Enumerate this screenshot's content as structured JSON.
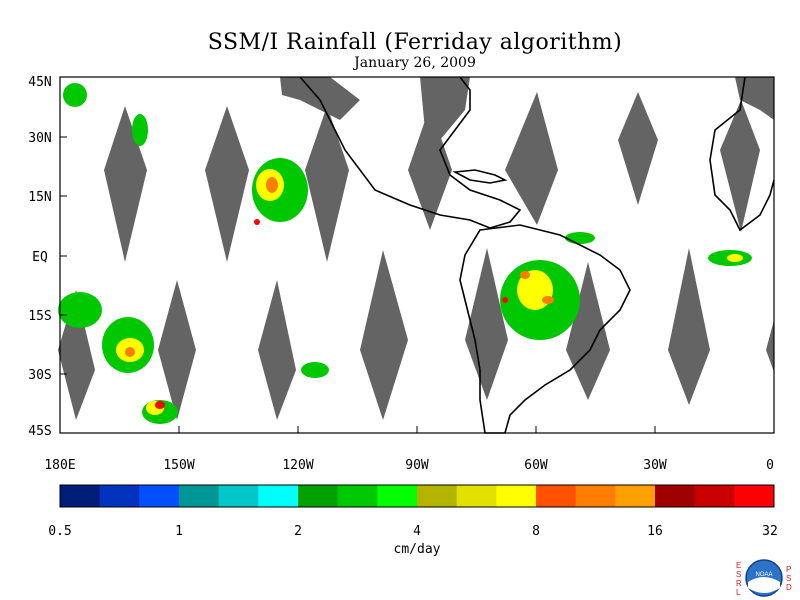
{
  "title": "SSM/I Rainfall (Ferriday algorithm)",
  "date": "January 26, 2009",
  "map": {
    "lat_labels": [
      "45N",
      "30N",
      "15N",
      "EQ",
      "15S",
      "30S",
      "45S"
    ],
    "lon_labels": [
      "180E",
      "150W",
      "120W",
      "90W",
      "60W",
      "30W",
      "0"
    ]
  },
  "colorbar": {
    "tick_labels": [
      "0.5",
      "1",
      "2",
      "4",
      "8",
      "16",
      "32"
    ],
    "unit": "cm/day",
    "colors": [
      "#001e78",
      "#0032be",
      "#0050ff",
      "#009696",
      "#00c8c8",
      "#00ffff",
      "#00a000",
      "#00c800",
      "#00ff00",
      "#b4b400",
      "#e1e100",
      "#ffff00",
      "#ff5000",
      "#ff7d00",
      "#ffa000",
      "#a00000",
      "#c80000",
      "#ff0000"
    ]
  },
  "colors": {
    "swath_gap": "#646464",
    "land_outline": "#000000",
    "background": "#ffffff"
  },
  "logo": {
    "left_text": "ESRL",
    "right_text": "PSD",
    "center_text": "NOAA"
  }
}
